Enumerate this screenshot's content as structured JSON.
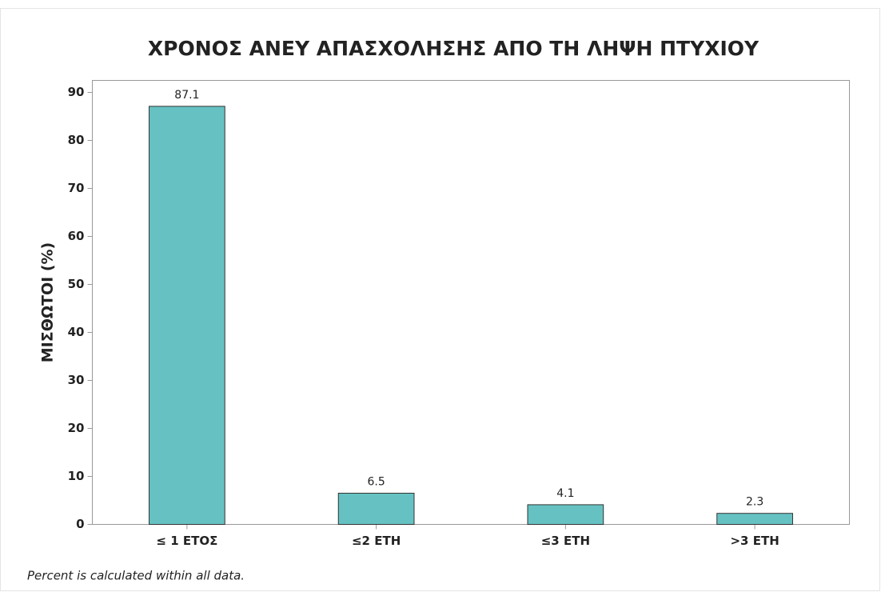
{
  "chart_data": {
    "type": "bar",
    "title": "ΧΡΟΝΟΣ ΑΝΕΥ ΑΠΑΣΧΟΛΗΣΗΣ ΑΠΟ ΤΗ ΛΗΨΗ ΠΤΥΧΙΟΥ",
    "y_label": "ΜΙΣΘΩΤΟΙ (%)",
    "categories": [
      "≤ 1 ΕΤΟΣ",
      "≤2 ΕΤΗ",
      "≤3 ΕΤΗ",
      ">3 ΕΤΗ"
    ],
    "values": [
      87.1,
      6.5,
      4.1,
      2.3
    ],
    "color": "#66c2c2",
    "ylim": [
      0,
      92.5
    ],
    "yticks": [
      0,
      10,
      20,
      30,
      40,
      50,
      60,
      70,
      80,
      90
    ],
    "grid": false,
    "footnote": "Percent is calculated within all data."
  }
}
